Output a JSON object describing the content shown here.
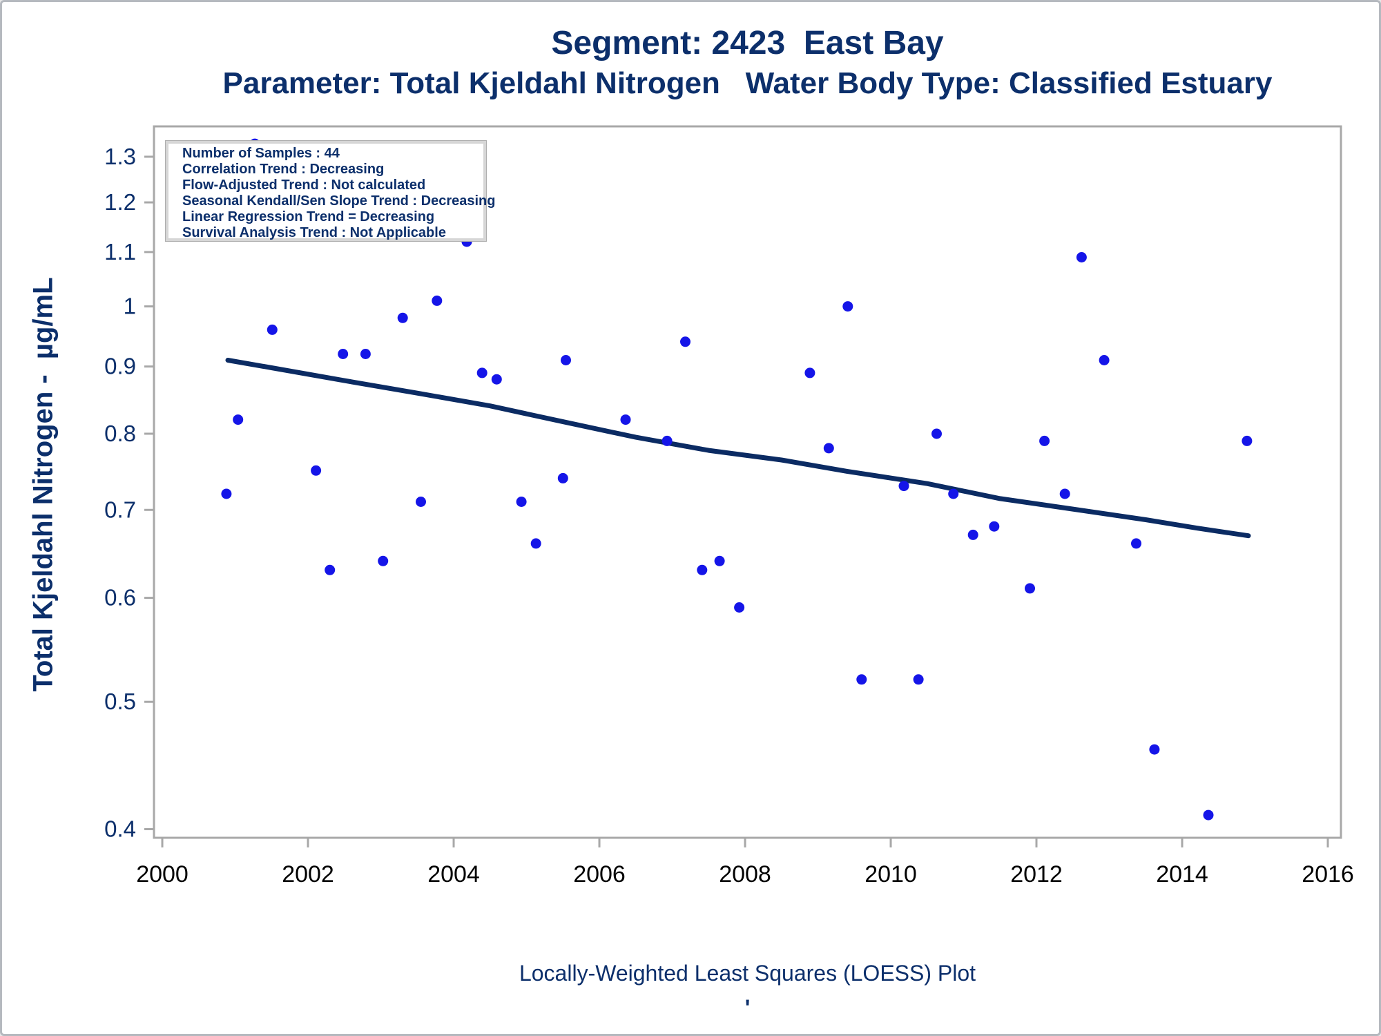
{
  "page": {
    "background": "#ffffff",
    "outer_border": "#b5b9bf"
  },
  "titles": {
    "line1": "Segment: 2423  East Bay",
    "line2": "Parameter: Total Kjeldahl Nitrogen   Water Body Type: Classified Estuary"
  },
  "stats_box": {
    "lines": [
      "Number of Samples : 44",
      "Correlation Trend : Decreasing",
      "Flow-Adjusted Trend : Not calculated",
      "Seasonal Kendall/Sen Slope Trend : Decreasing",
      "Linear Regression Trend = Decreasing",
      "Survival Analysis Trend : Not Applicable"
    ]
  },
  "caption": {
    "text": "Locally-Weighted Least Squares (LOESS) Plot",
    "tick_mark": "'"
  },
  "chart_data": {
    "type": "scatter",
    "title": "Segment: 2423  East Bay",
    "subtitle": "Parameter: Total Kjeldahl Nitrogen   Water Body Type: Classified Estuary",
    "xlabel": "",
    "ylabel": "Total Kjeldahl Nitrogen -  µg/mL",
    "y_scale": "log10",
    "grid": false,
    "legend": "none",
    "xlim": [
      1999.886,
      2016.18
    ],
    "ylim": [
      0.394,
      1.371
    ],
    "x_tick_values": [
      2000,
      2002,
      2004,
      2006,
      2008,
      2010,
      2012,
      2014,
      2016
    ],
    "x_tick_labels": [
      "2000",
      "2002",
      "2004",
      "2006",
      "2008",
      "2010",
      "2012",
      "2014",
      "2016"
    ],
    "y_tick_values": [
      1.3,
      1.2,
      1.1,
      1.0,
      0.9,
      0.8,
      0.7,
      0.6,
      0.5,
      0.4
    ],
    "y_tick_labels": [
      "1.3",
      "1.2",
      "1.1",
      "1",
      "0.9",
      "0.8",
      "0.7",
      "0.6",
      "0.5",
      "0.4"
    ],
    "points": [
      [
        2000.88,
        0.72
      ],
      [
        2001.04,
        0.82
      ],
      [
        2001.27,
        1.33
      ],
      [
        2001.51,
        0.96
      ],
      [
        2002.11,
        0.75
      ],
      [
        2002.3,
        0.63
      ],
      [
        2002.48,
        0.92
      ],
      [
        2002.79,
        0.92
      ],
      [
        2003.03,
        0.64
      ],
      [
        2003.3,
        0.98
      ],
      [
        2003.55,
        0.71
      ],
      [
        2003.77,
        1.01
      ],
      [
        2004.18,
        1.12
      ],
      [
        2004.39,
        0.89
      ],
      [
        2004.59,
        0.88
      ],
      [
        2004.93,
        0.71
      ],
      [
        2005.13,
        0.66
      ],
      [
        2005.5,
        0.74
      ],
      [
        2005.54,
        0.91
      ],
      [
        2006.36,
        0.82
      ],
      [
        2006.93,
        0.79
      ],
      [
        2007.18,
        0.94
      ],
      [
        2007.41,
        0.63
      ],
      [
        2007.65,
        0.64
      ],
      [
        2007.92,
        0.59
      ],
      [
        2008.89,
        0.89
      ],
      [
        2009.15,
        0.78
      ],
      [
        2009.41,
        1.0
      ],
      [
        2009.6,
        0.52
      ],
      [
        2010.18,
        0.73
      ],
      [
        2010.38,
        0.52
      ],
      [
        2010.63,
        0.8
      ],
      [
        2010.86,
        0.72
      ],
      [
        2011.13,
        0.67
      ],
      [
        2011.42,
        0.68
      ],
      [
        2011.91,
        0.61
      ],
      [
        2012.11,
        0.79
      ],
      [
        2012.39,
        0.72
      ],
      [
        2012.62,
        1.09
      ],
      [
        2012.93,
        0.91
      ],
      [
        2013.37,
        0.66
      ],
      [
        2013.62,
        0.46
      ],
      [
        2014.36,
        0.41
      ],
      [
        2014.89,
        0.79
      ]
    ],
    "loess_line": [
      [
        2000.9,
        0.91
      ],
      [
        2001.5,
        0.898
      ],
      [
        2002.5,
        0.878
      ],
      [
        2003.5,
        0.859
      ],
      [
        2004.5,
        0.84
      ],
      [
        2005.5,
        0.817
      ],
      [
        2006.5,
        0.795
      ],
      [
        2007.5,
        0.777
      ],
      [
        2008.5,
        0.764
      ],
      [
        2009.4,
        0.749
      ],
      [
        2010.5,
        0.733
      ],
      [
        2011.5,
        0.714
      ],
      [
        2012.5,
        0.701
      ],
      [
        2013.5,
        0.688
      ],
      [
        2014.2,
        0.678
      ],
      [
        2014.91,
        0.669
      ]
    ],
    "colors": {
      "point": "#1515e8",
      "loess": "#0b2b63",
      "axis": "#a8a8a8",
      "y_tick_text": "#0c2f6b",
      "x_tick_text": "#000000",
      "title_text": "#0c2f6b"
    }
  }
}
